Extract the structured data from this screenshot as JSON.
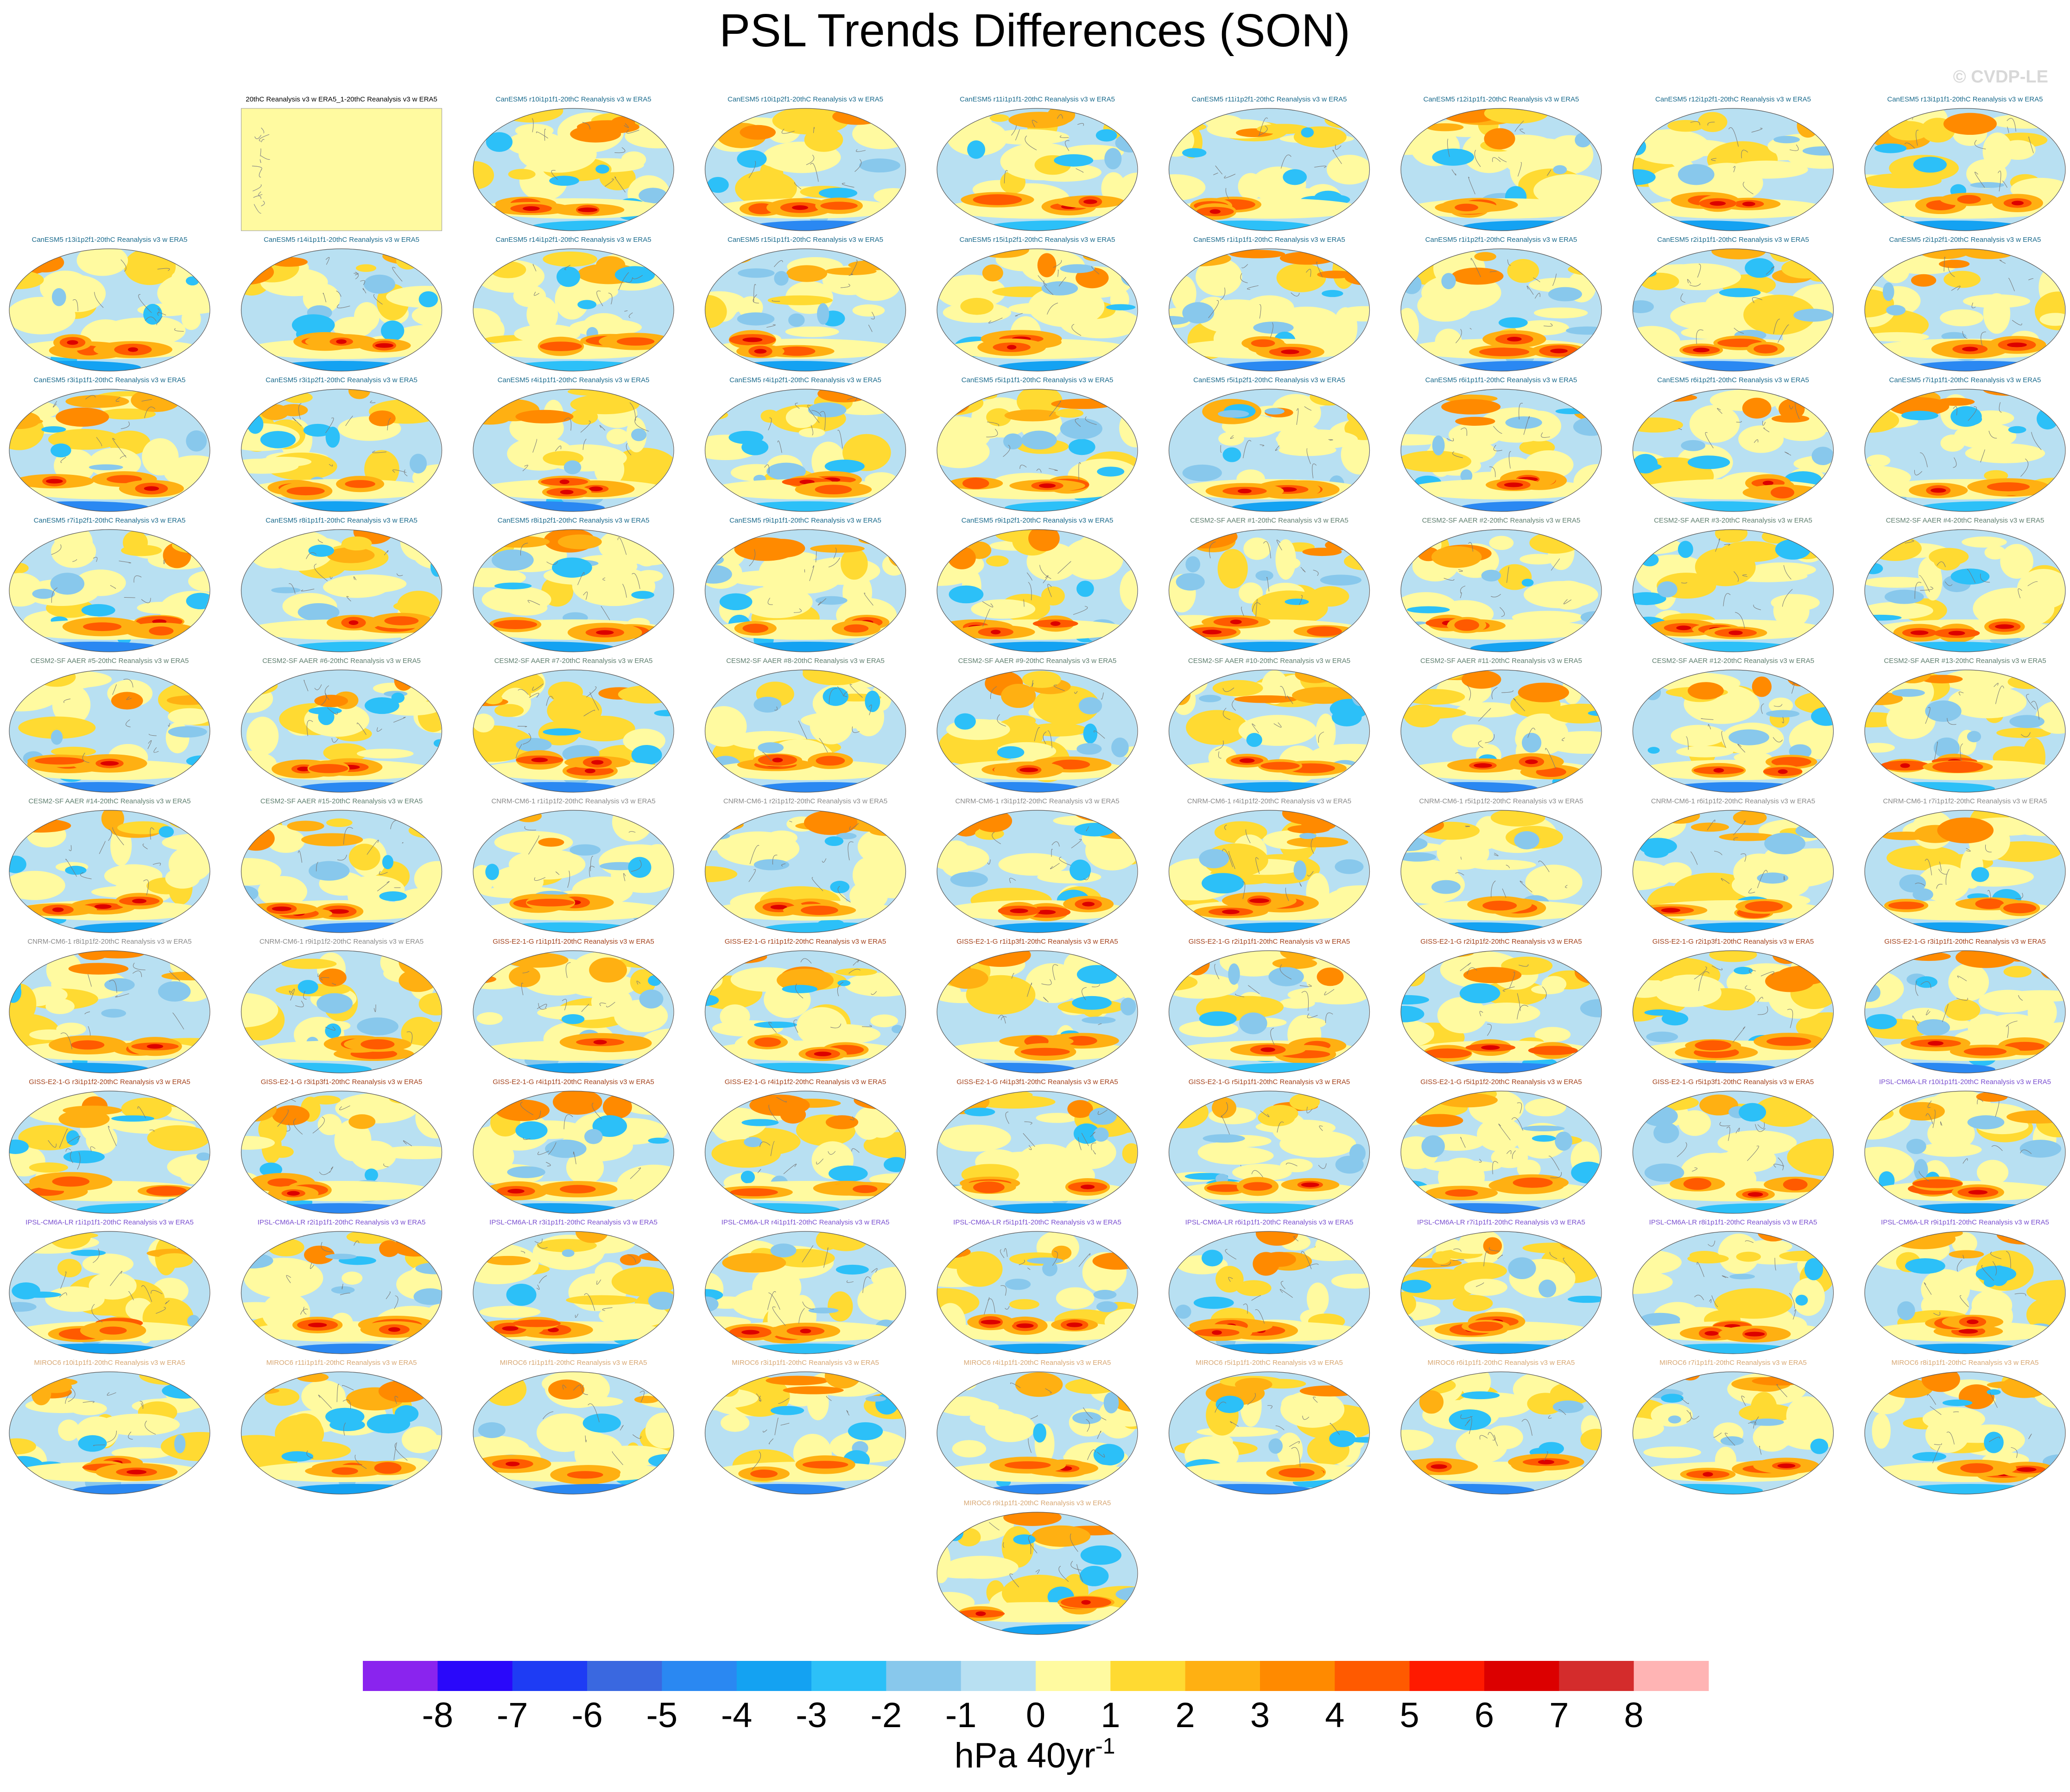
{
  "title": "PSL Trends Differences (SON)",
  "watermark": "© CVDP-LE",
  "panels": [
    {
      "title": "20thC Reanalysis v3 w ERA5_1-20thC Reanalysis v3 w ERA5",
      "color": "#000000"
    },
    {
      "title": "CanESM5 r10i1p1f1-20thC Reanalysis v3 w ERA5",
      "color": "#1a6a8c"
    },
    {
      "title": "CanESM5 r10i1p2f1-20thC Reanalysis v3 w ERA5",
      "color": "#1a6a8c"
    },
    {
      "title": "CanESM5 r11i1p1f1-20thC Reanalysis v3 w ERA5",
      "color": "#1a6a8c"
    },
    {
      "title": "CanESM5 r11i1p2f1-20thC Reanalysis v3 w ERA5",
      "color": "#1a6a8c"
    },
    {
      "title": "CanESM5 r12i1p1f1-20thC Reanalysis v3 w ERA5",
      "color": "#1a6a8c"
    },
    {
      "title": "CanESM5 r12i1p2f1-20thC Reanalysis v3 w ERA5",
      "color": "#1a6a8c"
    },
    {
      "title": "CanESM5 r13i1p1f1-20thC Reanalysis v3 w ERA5",
      "color": "#1a6a8c"
    },
    {
      "title": "CanESM5 r13i1p2f1-20thC Reanalysis v3 w ERA5",
      "color": "#1a6a8c"
    },
    {
      "title": "CanESM5 r14i1p1f1-20thC Reanalysis v3 w ERA5",
      "color": "#1a6a8c"
    },
    {
      "title": "CanESM5 r14i1p2f1-20thC Reanalysis v3 w ERA5",
      "color": "#1a6a8c"
    },
    {
      "title": "CanESM5 r15i1p1f1-20thC Reanalysis v3 w ERA5",
      "color": "#1a6a8c"
    },
    {
      "title": "CanESM5 r15i1p2f1-20thC Reanalysis v3 w ERA5",
      "color": "#1a6a8c"
    },
    {
      "title": "CanESM5 r1i1p1f1-20thC Reanalysis v3 w ERA5",
      "color": "#1a6a8c"
    },
    {
      "title": "CanESM5 r1i1p2f1-20thC Reanalysis v3 w ERA5",
      "color": "#1a6a8c"
    },
    {
      "title": "CanESM5 r2i1p1f1-20thC Reanalysis v3 w ERA5",
      "color": "#1a6a8c"
    },
    {
      "title": "CanESM5 r2i1p2f1-20thC Reanalysis v3 w ERA5",
      "color": "#1a6a8c"
    },
    {
      "title": "CanESM5 r3i1p1f1-20thC Reanalysis v3 w ERA5",
      "color": "#1a6a8c"
    },
    {
      "title": "CanESM5 r3i1p2f1-20thC Reanalysis v3 w ERA5",
      "color": "#1a6a8c"
    },
    {
      "title": "CanESM5 r4i1p1f1-20thC Reanalysis v3 w ERA5",
      "color": "#1a6a8c"
    },
    {
      "title": "CanESM5 r4i1p2f1-20thC Reanalysis v3 w ERA5",
      "color": "#1a6a8c"
    },
    {
      "title": "CanESM5 r5i1p1f1-20thC Reanalysis v3 w ERA5",
      "color": "#1a6a8c"
    },
    {
      "title": "CanESM5 r5i1p2f1-20thC Reanalysis v3 w ERA5",
      "color": "#1a6a8c"
    },
    {
      "title": "CanESM5 r6i1p1f1-20thC Reanalysis v3 w ERA5",
      "color": "#1a6a8c"
    },
    {
      "title": "CanESM5 r6i1p2f1-20thC Reanalysis v3 w ERA5",
      "color": "#1a6a8c"
    },
    {
      "title": "CanESM5 r7i1p1f1-20thC Reanalysis v3 w ERA5",
      "color": "#1a6a8c"
    },
    {
      "title": "CanESM5 r7i1p2f1-20thC Reanalysis v3 w ERA5",
      "color": "#1a6a8c"
    },
    {
      "title": "CanESM5 r8i1p1f1-20thC Reanalysis v3 w ERA5",
      "color": "#1a6a8c"
    },
    {
      "title": "CanESM5 r8i1p2f1-20thC Reanalysis v3 w ERA5",
      "color": "#1a6a8c"
    },
    {
      "title": "CanESM5 r9i1p1f1-20thC Reanalysis v3 w ERA5",
      "color": "#1a6a8c"
    },
    {
      "title": "CanESM5 r9i1p2f1-20thC Reanalysis v3 w ERA5",
      "color": "#1a6a8c"
    },
    {
      "title": "CESM2-SF AAER #1-20thC Reanalysis v3 w ERA5",
      "color": "#5f7f6f"
    },
    {
      "title": "CESM2-SF AAER #2-20thC Reanalysis v3 w ERA5",
      "color": "#5f7f6f"
    },
    {
      "title": "CESM2-SF AAER #3-20thC Reanalysis v3 w ERA5",
      "color": "#5f7f6f"
    },
    {
      "title": "CESM2-SF AAER #4-20thC Reanalysis v3 w ERA5",
      "color": "#5f7f6f"
    },
    {
      "title": "CESM2-SF AAER #5-20thC Reanalysis v3 w ERA5",
      "color": "#5f7f6f"
    },
    {
      "title": "CESM2-SF AAER #6-20thC Reanalysis v3 w ERA5",
      "color": "#5f7f6f"
    },
    {
      "title": "CESM2-SF AAER #7-20thC Reanalysis v3 w ERA5",
      "color": "#5f7f6f"
    },
    {
      "title": "CESM2-SF AAER #8-20thC Reanalysis v3 w ERA5",
      "color": "#5f7f6f"
    },
    {
      "title": "CESM2-SF AAER #9-20thC Reanalysis v3 w ERA5",
      "color": "#5f7f6f"
    },
    {
      "title": "CESM2-SF AAER #10-20thC Reanalysis v3 w ERA5",
      "color": "#5f7f6f"
    },
    {
      "title": "CESM2-SF AAER #11-20thC Reanalysis v3 w ERA5",
      "color": "#5f7f6f"
    },
    {
      "title": "CESM2-SF AAER #12-20thC Reanalysis v3 w ERA5",
      "color": "#5f7f6f"
    },
    {
      "title": "CESM2-SF AAER #13-20thC Reanalysis v3 w ERA5",
      "color": "#5f7f6f"
    },
    {
      "title": "CESM2-SF AAER #14-20thC Reanalysis v3 w ERA5",
      "color": "#5f7f6f"
    },
    {
      "title": "CESM2-SF AAER #15-20thC Reanalysis v3 w ERA5",
      "color": "#5f7f6f"
    },
    {
      "title": "CNRM-CM6-1 r1i1p1f2-20thC Reanalysis v3 w ERA5",
      "color": "#8a8a8a"
    },
    {
      "title": "CNRM-CM6-1 r2i1p1f2-20thC Reanalysis v3 w ERA5",
      "color": "#8a8a8a"
    },
    {
      "title": "CNRM-CM6-1 r3i1p1f2-20thC Reanalysis v3 w ERA5",
      "color": "#8a8a8a"
    },
    {
      "title": "CNRM-CM6-1 r4i1p1f2-20thC Reanalysis v3 w ERA5",
      "color": "#8a8a8a"
    },
    {
      "title": "CNRM-CM6-1 r5i1p1f2-20thC Reanalysis v3 w ERA5",
      "color": "#8a8a8a"
    },
    {
      "title": "CNRM-CM6-1 r6i1p1f2-20thC Reanalysis v3 w ERA5",
      "color": "#8a8a8a"
    },
    {
      "title": "CNRM-CM6-1 r7i1p1f2-20thC Reanalysis v3 w ERA5",
      "color": "#8a8a8a"
    },
    {
      "title": "CNRM-CM6-1 r8i1p1f2-20thC Reanalysis v3 w ERA5",
      "color": "#8a8a8a"
    },
    {
      "title": "CNRM-CM6-1 r9i1p1f2-20thC Reanalysis v3 w ERA5",
      "color": "#8a8a8a"
    },
    {
      "title": "GISS-E2-1-G r1i1p1f1-20thC Reanalysis v3 w ERA5",
      "color": "#a4421c"
    },
    {
      "title": "GISS-E2-1-G r1i1p1f2-20thC Reanalysis v3 w ERA5",
      "color": "#a4421c"
    },
    {
      "title": "GISS-E2-1-G r1i1p3f1-20thC Reanalysis v3 w ERA5",
      "color": "#a4421c"
    },
    {
      "title": "GISS-E2-1-G r2i1p1f1-20thC Reanalysis v3 w ERA5",
      "color": "#a4421c"
    },
    {
      "title": "GISS-E2-1-G r2i1p1f2-20thC Reanalysis v3 w ERA5",
      "color": "#a4421c"
    },
    {
      "title": "GISS-E2-1-G r2i1p3f1-20thC Reanalysis v3 w ERA5",
      "color": "#a4421c"
    },
    {
      "title": "GISS-E2-1-G r3i1p1f1-20thC Reanalysis v3 w ERA5",
      "color": "#a4421c"
    },
    {
      "title": "GISS-E2-1-G r3i1p1f2-20thC Reanalysis v3 w ERA5",
      "color": "#a4421c"
    },
    {
      "title": "GISS-E2-1-G r3i1p3f1-20thC Reanalysis v3 w ERA5",
      "color": "#a4421c"
    },
    {
      "title": "GISS-E2-1-G r4i1p1f1-20thC Reanalysis v3 w ERA5",
      "color": "#a4421c"
    },
    {
      "title": "GISS-E2-1-G r4i1p1f2-20thC Reanalysis v3 w ERA5",
      "color": "#a4421c"
    },
    {
      "title": "GISS-E2-1-G r4i1p3f1-20thC Reanalysis v3 w ERA5",
      "color": "#a4421c"
    },
    {
      "title": "GISS-E2-1-G r5i1p1f1-20thC Reanalysis v3 w ERA5",
      "color": "#a4421c"
    },
    {
      "title": "GISS-E2-1-G r5i1p1f2-20thC Reanalysis v3 w ERA5",
      "color": "#a4421c"
    },
    {
      "title": "GISS-E2-1-G r5i1p3f1-20thC Reanalysis v3 w ERA5",
      "color": "#a4421c"
    },
    {
      "title": "IPSL-CM6A-LR r10i1p1f1-20thC Reanalysis v3 w ERA5",
      "color": "#7a4fd0"
    },
    {
      "title": "IPSL-CM6A-LR r1i1p1f1-20thC Reanalysis v3 w ERA5",
      "color": "#7a4fd0"
    },
    {
      "title": "IPSL-CM6A-LR r2i1p1f1-20thC Reanalysis v3 w ERA5",
      "color": "#7a4fd0"
    },
    {
      "title": "IPSL-CM6A-LR r3i1p1f1-20thC Reanalysis v3 w ERA5",
      "color": "#7a4fd0"
    },
    {
      "title": "IPSL-CM6A-LR r4i1p1f1-20thC Reanalysis v3 w ERA5",
      "color": "#7a4fd0"
    },
    {
      "title": "IPSL-CM6A-LR r5i1p1f1-20thC Reanalysis v3 w ERA5",
      "color": "#7a4fd0"
    },
    {
      "title": "IPSL-CM6A-LR r6i1p1f1-20thC Reanalysis v3 w ERA5",
      "color": "#7a4fd0"
    },
    {
      "title": "IPSL-CM6A-LR r7i1p1f1-20thC Reanalysis v3 w ERA5",
      "color": "#7a4fd0"
    },
    {
      "title": "IPSL-CM6A-LR r8i1p1f1-20thC Reanalysis v3 w ERA5",
      "color": "#7a4fd0"
    },
    {
      "title": "IPSL-CM6A-LR r9i1p1f1-20thC Reanalysis v3 w ERA5",
      "color": "#7a4fd0"
    },
    {
      "title": "MIROC6 r10i1p1f1-20thC Reanalysis v3 w ERA5",
      "color": "#d8a874"
    },
    {
      "title": "MIROC6 r11i1p1f1-20thC Reanalysis v3 w ERA5",
      "color": "#d8a874"
    },
    {
      "title": "MIROC6 r1i1p1f1-20thC Reanalysis v3 w ERA5",
      "color": "#d8a874"
    },
    {
      "title": "MIROC6 r3i1p1f1-20thC Reanalysis v3 w ERA5",
      "color": "#d8a874"
    },
    {
      "title": "MIROC6 r4i1p1f1-20thC Reanalysis v3 w ERA5",
      "color": "#d8a874"
    },
    {
      "title": "MIROC6 r5i1p1f1-20thC Reanalysis v3 w ERA5",
      "color": "#d8a874"
    },
    {
      "title": "MIROC6 r6i1p1f1-20thC Reanalysis v3 w ERA5",
      "color": "#d8a874"
    },
    {
      "title": "MIROC6 r7i1p1f1-20thC Reanalysis v3 w ERA5",
      "color": "#d8a874"
    },
    {
      "title": "MIROC6 r8i1p1f1-20thC Reanalysis v3 w ERA5",
      "color": "#d8a874"
    },
    {
      "title": "MIROC6 r9i1p1f1-20thC Reanalysis v3 w ERA5",
      "color": "#d8a874"
    }
  ],
  "colorbar": {
    "colors": [
      "#8a24ee",
      "#2a08fa",
      "#1e3cf4",
      "#3a68e0",
      "#2a88f2",
      "#14a2f2",
      "#2cc0f8",
      "#88c8ec",
      "#b8e0f2",
      "#fffaa0",
      "#ffda32",
      "#ffb012",
      "#ff8a00",
      "#ff5a00",
      "#ff1a00",
      "#dc0000",
      "#d42c2c",
      "#ffb4b4"
    ],
    "labels": [
      -8,
      -7,
      -6,
      -5,
      -4,
      -3,
      -2,
      -1,
      0,
      1,
      2,
      3,
      4,
      5,
      6,
      7,
      8
    ],
    "units": "hPa 40yr",
    "units_superscript": "-1"
  }
}
